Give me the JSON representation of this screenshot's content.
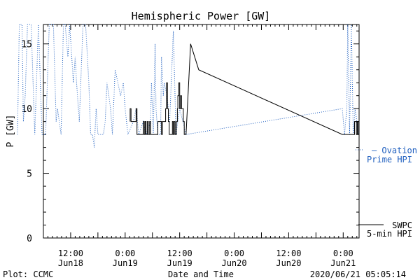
{
  "chart_data": {
    "type": "line",
    "title": "Hemispheric Power [GW]",
    "xlabel": "Date and Time",
    "ylabel": "P [GW]",
    "ylim": [
      0,
      16.5
    ],
    "y_ticks": [
      0,
      5,
      10,
      15
    ],
    "x_tick_labels": [
      {
        "t": 12,
        "line1": "12:00",
        "line2": "Jun18"
      },
      {
        "t": 24,
        "line1": "0:00",
        "line2": "Jun19"
      },
      {
        "t": 36,
        "line1": "12:00",
        "line2": "Jun19"
      },
      {
        "t": 48,
        "line1": "0:00",
        "line2": "Jun20"
      },
      {
        "t": 60,
        "line1": "12:00",
        "line2": "Jun20"
      },
      {
        "t": 72,
        "line1": "0:00",
        "line2": "Jun21"
      }
    ],
    "series": [
      {
        "name": "SWPC 5-min HPI",
        "legend_lines": [
          "SWPC",
          "5-min HPI"
        ],
        "style": "solid",
        "color": "#000000",
        "points": [
          [
            25.1,
            9
          ],
          [
            25.1,
            10
          ],
          [
            25.3,
            10
          ],
          [
            25.3,
            9
          ],
          [
            26.4,
            9
          ],
          [
            26.4,
            10
          ],
          [
            26.6,
            10
          ],
          [
            26.6,
            8
          ],
          [
            28.0,
            8
          ],
          [
            28.0,
            9
          ],
          [
            28.2,
            9
          ],
          [
            28.2,
            8
          ],
          [
            28.4,
            8
          ],
          [
            28.4,
            9
          ],
          [
            28.6,
            9
          ],
          [
            28.6,
            8
          ],
          [
            28.9,
            8
          ],
          [
            28.9,
            9
          ],
          [
            29.1,
            9
          ],
          [
            29.1,
            8
          ],
          [
            29.4,
            8
          ],
          [
            29.4,
            9
          ],
          [
            29.6,
            9
          ],
          [
            29.6,
            8
          ],
          [
            31.2,
            8
          ],
          [
            31.2,
            9
          ],
          [
            32.0,
            9
          ],
          [
            32.0,
            8
          ],
          [
            32.2,
            8
          ],
          [
            32.2,
            9
          ],
          [
            32.9,
            9
          ],
          [
            32.9,
            10
          ],
          [
            33.1,
            10
          ],
          [
            33.1,
            12
          ],
          [
            33.3,
            12
          ],
          [
            33.3,
            10
          ],
          [
            33.5,
            10
          ],
          [
            33.5,
            9
          ],
          [
            33.7,
            9
          ],
          [
            33.7,
            8
          ],
          [
            34.4,
            8
          ],
          [
            34.4,
            9
          ],
          [
            34.6,
            9
          ],
          [
            34.6,
            8
          ],
          [
            34.8,
            8
          ],
          [
            34.8,
            9
          ],
          [
            35.0,
            9
          ],
          [
            35.0,
            8
          ],
          [
            35.3,
            8
          ],
          [
            35.3,
            9
          ],
          [
            35.5,
            9
          ],
          [
            35.5,
            10
          ],
          [
            35.6,
            10
          ],
          [
            35.6,
            11
          ],
          [
            35.8,
            11
          ],
          [
            35.8,
            12
          ],
          [
            36.0,
            12
          ],
          [
            36.0,
            10
          ],
          [
            36.2,
            10
          ],
          [
            36.2,
            11
          ],
          [
            36.4,
            11
          ],
          [
            36.4,
            10
          ],
          [
            36.8,
            10
          ],
          [
            36.8,
            9
          ],
          [
            37.0,
            9
          ],
          [
            37.0,
            8
          ],
          [
            37.4,
            8
          ],
          [
            38.4,
            15
          ],
          [
            40.2,
            13
          ],
          [
            71.8,
            8
          ],
          [
            74.5,
            8
          ],
          [
            74.5,
            9
          ],
          [
            74.9,
            9
          ],
          [
            74.9,
            8
          ],
          [
            75.1,
            8
          ],
          [
            75.1,
            9
          ],
          [
            75.3,
            9
          ],
          [
            75.3,
            8
          ],
          [
            75.5,
            8
          ]
        ]
      },
      {
        "name": "Ovation Prime HPI",
        "legend_lines": [
          "— Ovation",
          "Prime HPI"
        ],
        "style": "dotted",
        "color": "#1f5fbf",
        "points": [
          [
            0.3,
            8
          ],
          [
            0.7,
            16.5
          ],
          [
            1.3,
            16.5
          ],
          [
            1.6,
            9
          ],
          [
            2.0,
            11
          ],
          [
            2.5,
            16.5
          ],
          [
            3.3,
            16.5
          ],
          [
            4.1,
            8
          ],
          [
            4.9,
            16.5
          ],
          [
            5.7,
            8
          ],
          [
            6.5,
            8
          ],
          [
            7.3,
            16.5
          ],
          [
            8.2,
            16.5
          ],
          [
            8.8,
            9
          ],
          [
            9.1,
            10
          ],
          [
            9.5,
            9
          ],
          [
            9.9,
            8
          ],
          [
            10.4,
            16.5
          ],
          [
            10.8,
            16.5
          ],
          [
            11.4,
            14
          ],
          [
            11.8,
            16.5
          ],
          [
            12.6,
            12
          ],
          [
            13.0,
            14
          ],
          [
            13.3,
            12
          ],
          [
            13.9,
            9
          ],
          [
            14.7,
            16.5
          ],
          [
            15.3,
            16.5
          ],
          [
            16.0,
            12
          ],
          [
            16.4,
            8
          ],
          [
            16.8,
            8
          ],
          [
            17.2,
            7
          ],
          [
            17.6,
            10
          ],
          [
            18.0,
            8
          ],
          [
            19.2,
            8
          ],
          [
            19.6,
            9
          ],
          [
            20.0,
            12
          ],
          [
            20.4,
            11
          ],
          [
            20.8,
            10
          ],
          [
            21.2,
            8
          ],
          [
            21.8,
            13
          ],
          [
            22.4,
            12
          ],
          [
            23.0,
            11
          ],
          [
            23.6,
            12
          ],
          [
            24.0,
            10
          ],
          [
            24.6,
            8
          ],
          [
            25.8,
            9
          ],
          [
            26.4,
            10
          ],
          [
            27.0,
            8
          ],
          [
            28.0,
            9
          ],
          [
            28.6,
            8
          ],
          [
            29.6,
            9
          ],
          [
            29.8,
            12
          ],
          [
            30.2,
            8
          ],
          [
            30.6,
            15
          ],
          [
            30.8,
            10
          ],
          [
            31.2,
            8
          ],
          [
            31.8,
            8
          ],
          [
            32.0,
            14
          ],
          [
            32.4,
            11
          ],
          [
            32.6,
            12
          ],
          [
            33.2,
            11
          ],
          [
            33.8,
            9
          ],
          [
            34.6,
            16
          ],
          [
            35.2,
            8
          ],
          [
            36.0,
            10
          ],
          [
            37.4,
            8
          ],
          [
            71.8,
            10
          ],
          [
            72.3,
            8
          ],
          [
            72.8,
            10
          ],
          [
            73.0,
            16.5
          ],
          [
            73.4,
            8
          ],
          [
            73.8,
            16.5
          ],
          [
            74.2,
            8
          ],
          [
            74.6,
            10
          ],
          [
            75.0,
            9
          ],
          [
            75.4,
            8
          ]
        ]
      }
    ],
    "footer": {
      "left": "Plot: CCMC",
      "right": "2020/06/21 05:05:14"
    }
  }
}
